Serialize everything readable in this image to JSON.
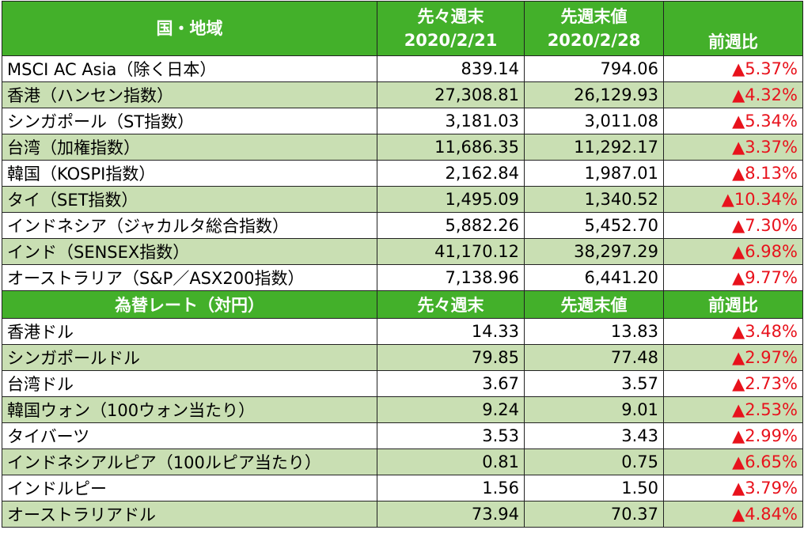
{
  "indices_table": {
    "headers": {
      "label": "国・地域",
      "prev2_week_label": "先々週末",
      "prev2_week_date": "2020/2/21",
      "prev_week_label": "先週末値",
      "prev_week_date": "2020/2/28",
      "change": "前週比"
    },
    "rows": [
      {
        "name": "MSCI AC Asia（除く日本）",
        "prev2": "839.14",
        "prev": "794.06",
        "change": "▲5.37%"
      },
      {
        "name": "香港（ハンセン指数）",
        "prev2": "27,308.81",
        "prev": "26,129.93",
        "change": "▲4.32%"
      },
      {
        "name": "シンガポール（ST指数）",
        "prev2": "3,181.03",
        "prev": "3,011.08",
        "change": "▲5.34%"
      },
      {
        "name": "台湾（加権指数）",
        "prev2": "11,686.35",
        "prev": "11,292.17",
        "change": "▲3.37%"
      },
      {
        "name": "韓国（KOSPI指数）",
        "prev2": "2,162.84",
        "prev": "1,987.01",
        "change": "▲8.13%"
      },
      {
        "name": "タイ（SET指数）",
        "prev2": "1,495.09",
        "prev": "1,340.52",
        "change": "▲10.34%"
      },
      {
        "name": "インドネシア（ジャカルタ総合指数）",
        "prev2": "5,882.26",
        "prev": "5,452.70",
        "change": "▲7.30%"
      },
      {
        "name": "インド（SENSEX指数）",
        "prev2": "41,170.12",
        "prev": "38,297.29",
        "change": "▲6.98%"
      },
      {
        "name": "オーストラリア（S&P／ASX200指数）",
        "prev2": "7,138.96",
        "prev": "6,441.20",
        "change": "▲9.77%"
      }
    ]
  },
  "fx_table": {
    "headers": {
      "label": "為替レート（対円）",
      "prev2_week_label": "先々週末",
      "prev_week_label": "先週末値",
      "change": "前週比"
    },
    "rows": [
      {
        "name": "香港ドル",
        "prev2": "14.33",
        "prev": "13.83",
        "change": "▲3.48%"
      },
      {
        "name": "シンガポールドル",
        "prev2": "79.85",
        "prev": "77.48",
        "change": "▲2.97%"
      },
      {
        "name": "台湾ドル",
        "prev2": "3.67",
        "prev": "3.57",
        "change": "▲2.73%"
      },
      {
        "name": "韓国ウォン（100ウォン当たり）",
        "prev2": "9.24",
        "prev": "9.01",
        "change": "▲2.53%"
      },
      {
        "name": "タイバーツ",
        "prev2": "3.53",
        "prev": "3.43",
        "change": "▲2.99%"
      },
      {
        "name": "インドネシアルピア（100ルピア当たり）",
        "prev2": "0.81",
        "prev": "0.75",
        "change": "▲6.65%"
      },
      {
        "name": "インドルピー",
        "prev2": "1.56",
        "prev": "1.50",
        "change": "▲3.79%"
      },
      {
        "name": "オーストラリアドル",
        "prev2": "73.94",
        "prev": "70.37",
        "change": "▲4.84%"
      }
    ]
  },
  "colors": {
    "header_green": "#43b02a",
    "alt_row_green": "#c9dfb3",
    "change_red": "#e8121c"
  }
}
